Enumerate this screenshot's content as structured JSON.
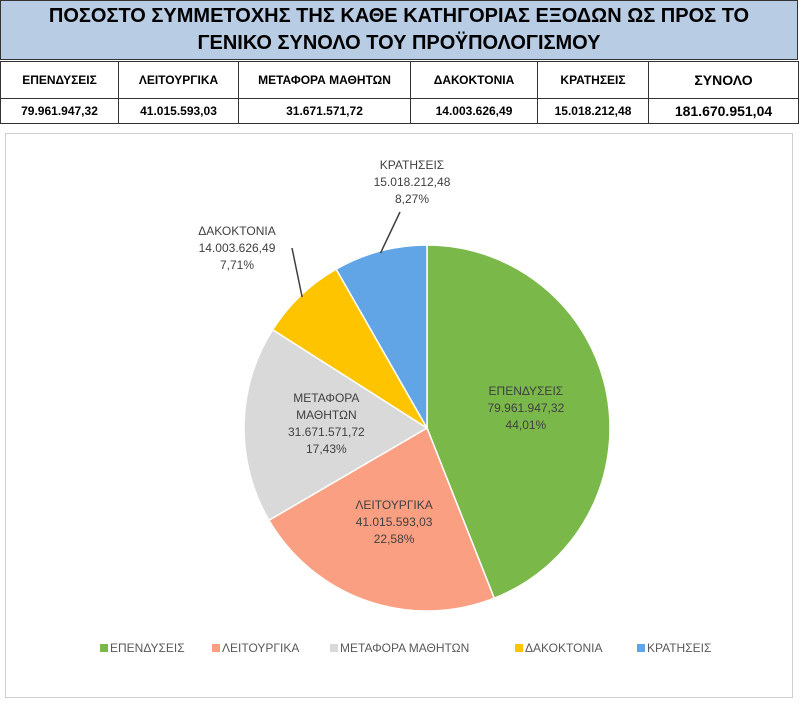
{
  "table": {
    "title": "ΠΟΣΟΣΤΟ ΣΥΜΜΕΤΟΧΗΣ ΤΗΣ ΚΑΘΕ ΚΑΤΗΓΟΡΙΑΣ ΕΞΟΔΩΝ ΩΣ ΠΡΟΣ ΤΟ ΓΕΝΙΚΟ ΣΥΝΟΛΟ ΤΟΥ ΠΡΟΫΠΟΛΟΓΙΣΜΟΥ",
    "headers": [
      "ΕΠΕΝΔΥΣΕΙΣ",
      "ΛΕΙΤΟΥΡΓΙΚΑ",
      "ΜΕΤΑΦΟΡΑ ΜΑΘΗΤΩΝ",
      "ΔΑΚΟΚΤΟΝΙΑ",
      "ΚΡΑΤΗΣΕΙΣ",
      "ΣΥΝΟΛΟ"
    ],
    "values": [
      "79.961.947,32",
      "41.015.593,03",
      "31.671.571,72",
      "14.003.626,49",
      "15.018.212,48",
      "181.670.951,04"
    ]
  },
  "chart_data": {
    "type": "pie",
    "categories": [
      "ΕΠΕΝΔΥΣΕΙΣ",
      "ΛΕΙΤΟΥΡΓΙΚΑ",
      "ΜΕΤΑΦΟΡΑ ΜΑΘΗΤΩΝ",
      "ΔΑΚΟΚΤΟΝΙΑ",
      "ΚΡΑΤΗΣΕΙΣ"
    ],
    "values": [
      79961947.32,
      41015593.03,
      31671571.72,
      14003626.49,
      15018212.48
    ],
    "value_labels": [
      "79.961.947,32",
      "41.015.593,03",
      "31.671.571,72",
      "14.003.626,49",
      "15.018.212,48"
    ],
    "percentages": [
      44.01,
      22.58,
      17.43,
      7.71,
      8.27
    ],
    "percentage_labels": [
      "44,01%",
      "22,58%",
      "17,43%",
      "7,71%",
      "8,27%"
    ],
    "colors": [
      "#7bb84a",
      "#fb9f82",
      "#d9d9d9",
      "#ffc400",
      "#62a5e6"
    ],
    "legend": "bottom"
  }
}
